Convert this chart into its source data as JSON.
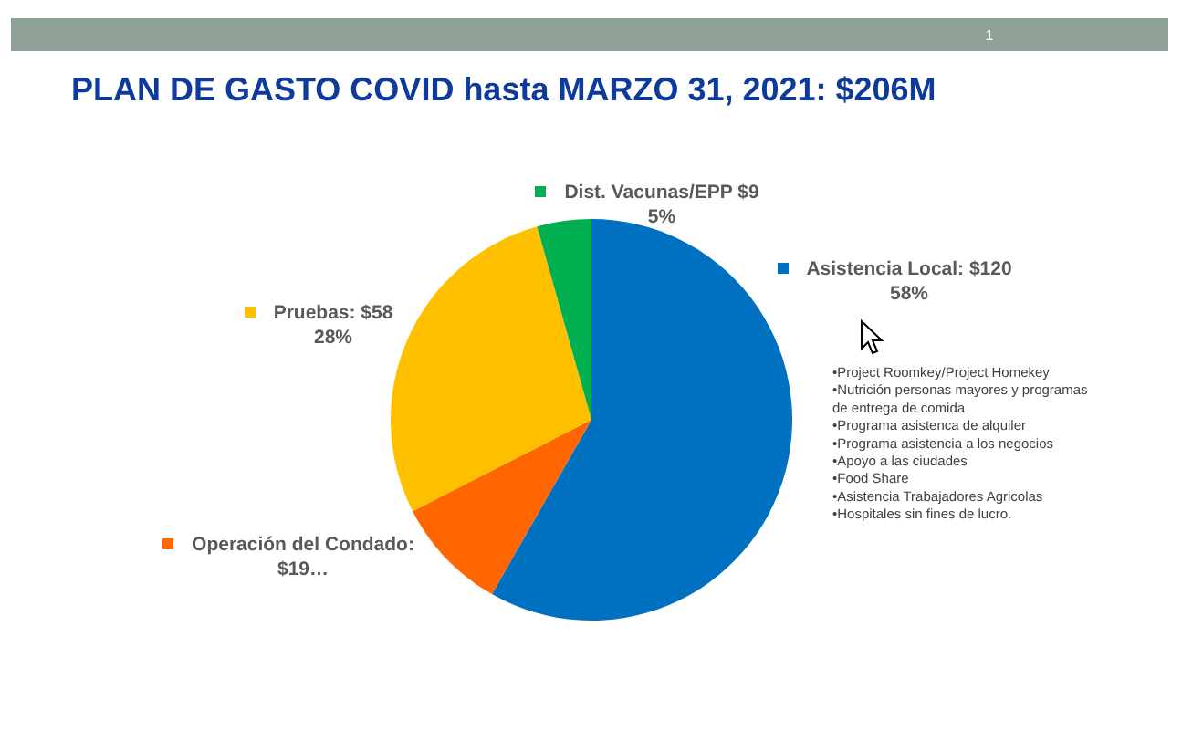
{
  "chart_data": {
    "type": "pie",
    "title": "PLAN DE GASTO COVID hasta MARZO 31, 2021: $206M",
    "categories": [
      "Asistencia Local",
      "Operación del Condado",
      "Pruebas",
      "Dist. Vacunas/EPP"
    ],
    "values": [
      120,
      19,
      58,
      9
    ],
    "colors": [
      "#0070c0",
      "#ff6600",
      "#ffc000",
      "#00b050"
    ],
    "value_labels": [
      "$120\n58%",
      ": $19…",
      "$58\n28%",
      "$9\n5%"
    ],
    "legend": "top",
    "annotations": [
      "1",
      "•Project Roomkey/Project Homekey\n•Nutrición personas mayores y programas de entrega de comida\n•Programa asistenca de alquiler\n•Programa asistencia a los negocios\n•Apoyo a las ciudades\n•Food Share\n•Asistencia Trabajadores Agricolas\n•Hospitales sin fines de lucro."
    ]
  }
}
